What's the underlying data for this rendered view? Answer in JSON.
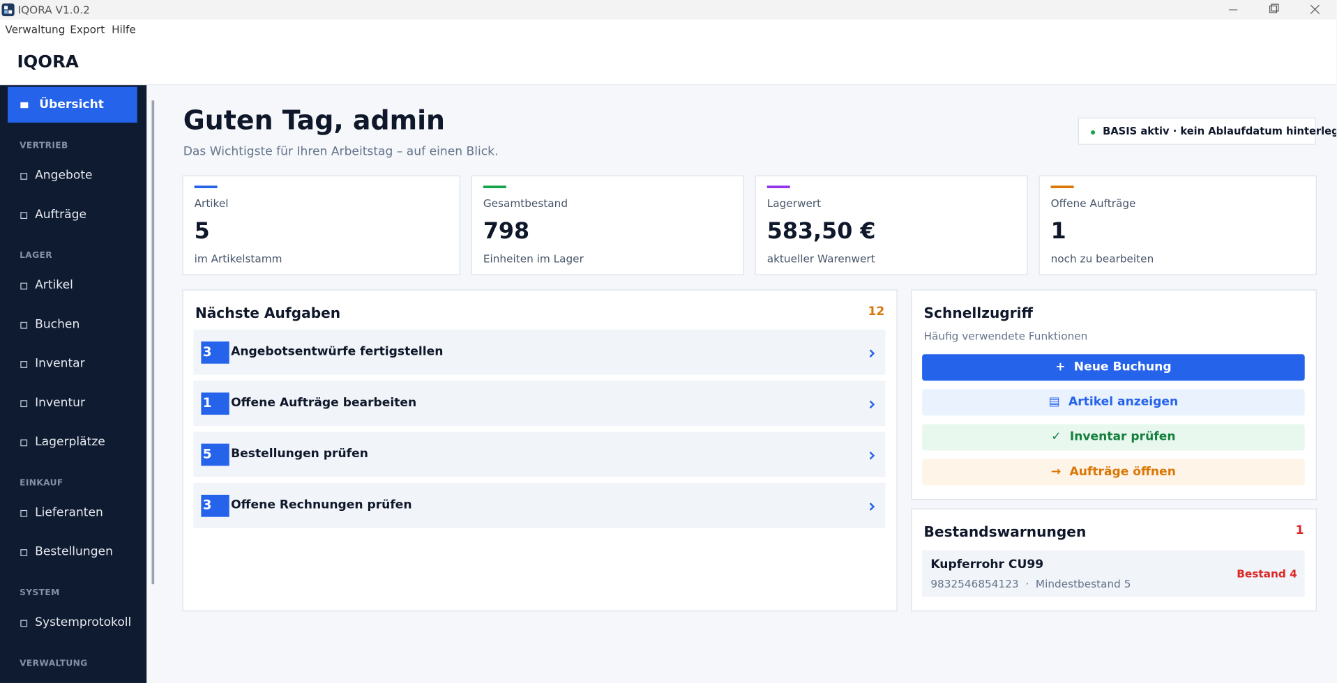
{
  "window": {
    "title": "IQORA V1.0.2"
  },
  "menu": [
    "Verwaltung",
    "Export",
    "Hilfe"
  ],
  "header": {
    "brand": "IQORA"
  },
  "sidebar": {
    "active": "Übersicht",
    "sections": [
      {
        "label": "VERTRIEB",
        "items": [
          "Angebote",
          "Aufträge"
        ]
      },
      {
        "label": "LAGER",
        "items": [
          "Artikel",
          "Buchen",
          "Inventar",
          "Inventur",
          "Lagerplätze"
        ]
      },
      {
        "label": "EINKAUF",
        "items": [
          "Lieferanten",
          "Bestellungen"
        ]
      },
      {
        "label": "SYSTEM",
        "items": [
          "Systemprotokoll"
        ]
      },
      {
        "label": "VERWALTUNG",
        "items": []
      }
    ]
  },
  "greeting": {
    "title": "Guten Tag, admin",
    "subtitle": "Das Wichtigste für Ihren Arbeitstag – auf einen Blick."
  },
  "license": "BASIS aktiv · kein Ablaufdatum hinterlegt",
  "stats": [
    {
      "label": "Artikel",
      "value": 5,
      "sub": "im Artikelstamm",
      "color": "#2563eb"
    },
    {
      "label": "Gesamtbestand",
      "value": 798,
      "sub": "Einheiten im Lager",
      "color": "#16a34a"
    },
    {
      "label": "Lagerwert",
      "value": "583,50 €",
      "sub": "aktueller Warenwert",
      "color": "#9333ea"
    },
    {
      "label": "Offene Aufträge",
      "value": 1,
      "sub": "noch zu bearbeiten",
      "color": "#d97706"
    }
  ],
  "tasks": {
    "title": "Nächste Aufgaben",
    "total": 12,
    "items": [
      {
        "count": 3,
        "label": "Angebotsentwürfe fertigstellen"
      },
      {
        "count": 1,
        "label": "Offene Aufträge bearbeiten"
      },
      {
        "count": 5,
        "label": "Bestellungen prüfen"
      },
      {
        "count": 3,
        "label": "Offene Rechnungen prüfen"
      }
    ]
  },
  "quick": {
    "title": "Schnellzugriff",
    "subtitle": "Häufig verwendete Funktionen",
    "buttons": [
      {
        "icon": "+",
        "label": "Neue Buchung"
      },
      {
        "icon": "▤",
        "label": "Artikel anzeigen"
      },
      {
        "icon": "✓",
        "label": "Inventar prüfen"
      },
      {
        "icon": "→",
        "label": "Aufträge öffnen"
      }
    ]
  },
  "warnings": {
    "title": "Bestandswarnungen",
    "count": 1,
    "items": [
      {
        "name": "Kupferrohr CU99",
        "meta": "9832546854123  ·  Mindestbestand 5",
        "stock": "Bestand 4"
      }
    ]
  }
}
